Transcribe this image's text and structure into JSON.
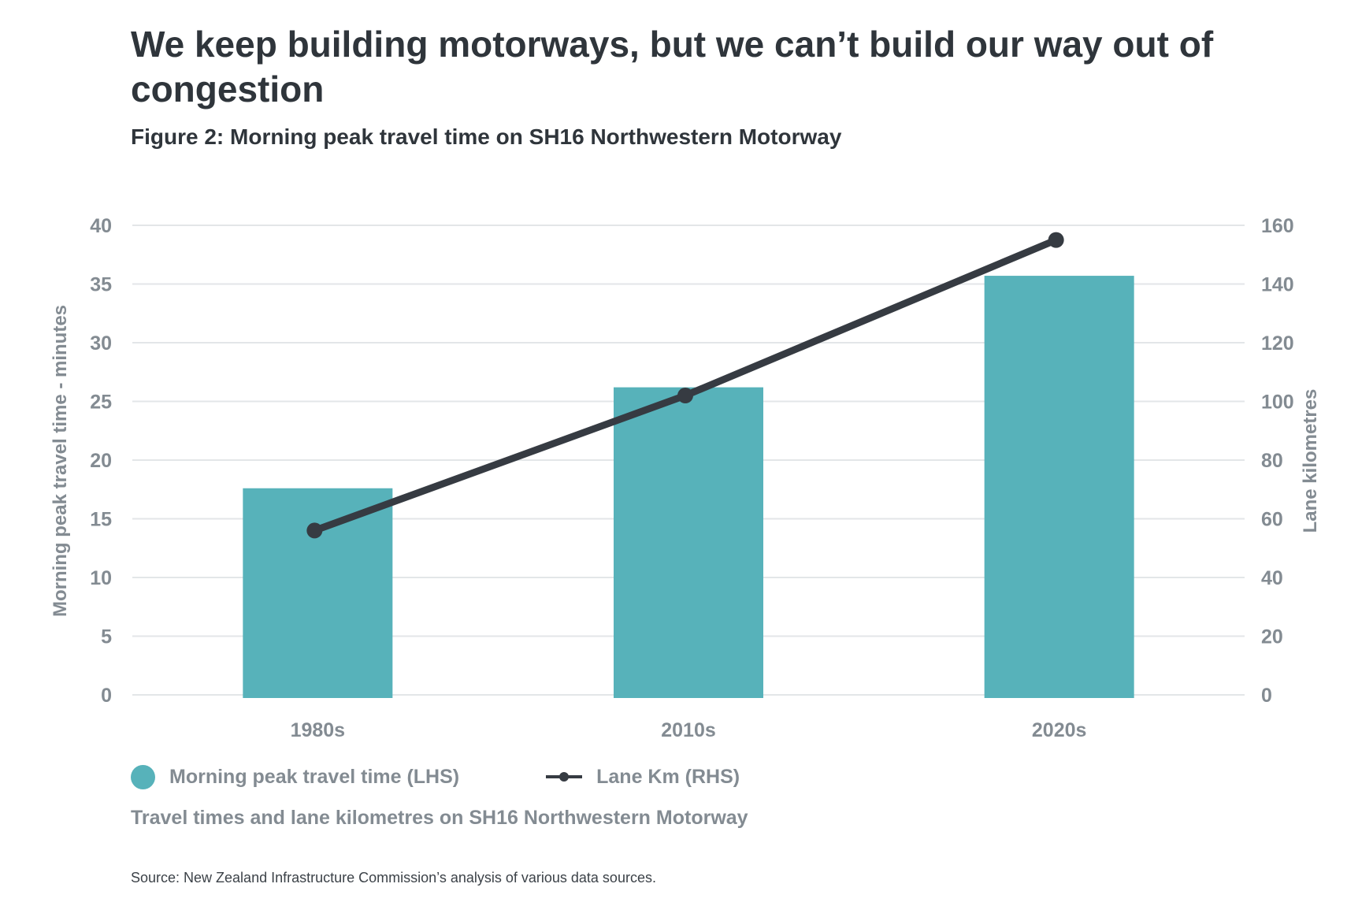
{
  "title": "We keep building motorways, but we can’t build our way out of congestion",
  "subtitle": "Figure 2: Morning peak travel time on SH16 Northwestern Motorway",
  "caption": "Travel times and lane kilometres on SH16 Northwestern Motorway",
  "source": "Source: New Zealand Infrastructure Commission’s analysis of various data sources.",
  "legend": {
    "bar_label": "Morning peak travel time (LHS)",
    "line_label": "Lane Km (RHS)"
  },
  "chart_data": {
    "type": "bar",
    "categories": [
      "1980s",
      "2010s",
      "2020s"
    ],
    "series": [
      {
        "name": "Morning peak travel time (LHS)",
        "type": "bar",
        "axis": "left",
        "values": [
          17.6,
          26.2,
          35.7
        ],
        "color": "#57b2ba"
      },
      {
        "name": "Lane Km (RHS)",
        "type": "line",
        "axis": "right",
        "values": [
          56,
          102,
          155
        ],
        "color": "#363b42"
      }
    ],
    "ylabel": "Morning peak travel time - minutes",
    "y2label": "Lane kilometres",
    "ylim": [
      0,
      40
    ],
    "y2lim": [
      0,
      160
    ],
    "yticks": [
      "0",
      "5",
      "10",
      "15",
      "20",
      "25",
      "30",
      "35",
      "40"
    ],
    "y2ticks": [
      "0",
      "20",
      "40",
      "60",
      "80",
      "100",
      "120",
      "140",
      "160"
    ],
    "grid": true,
    "legend_position": "bottom-left"
  }
}
